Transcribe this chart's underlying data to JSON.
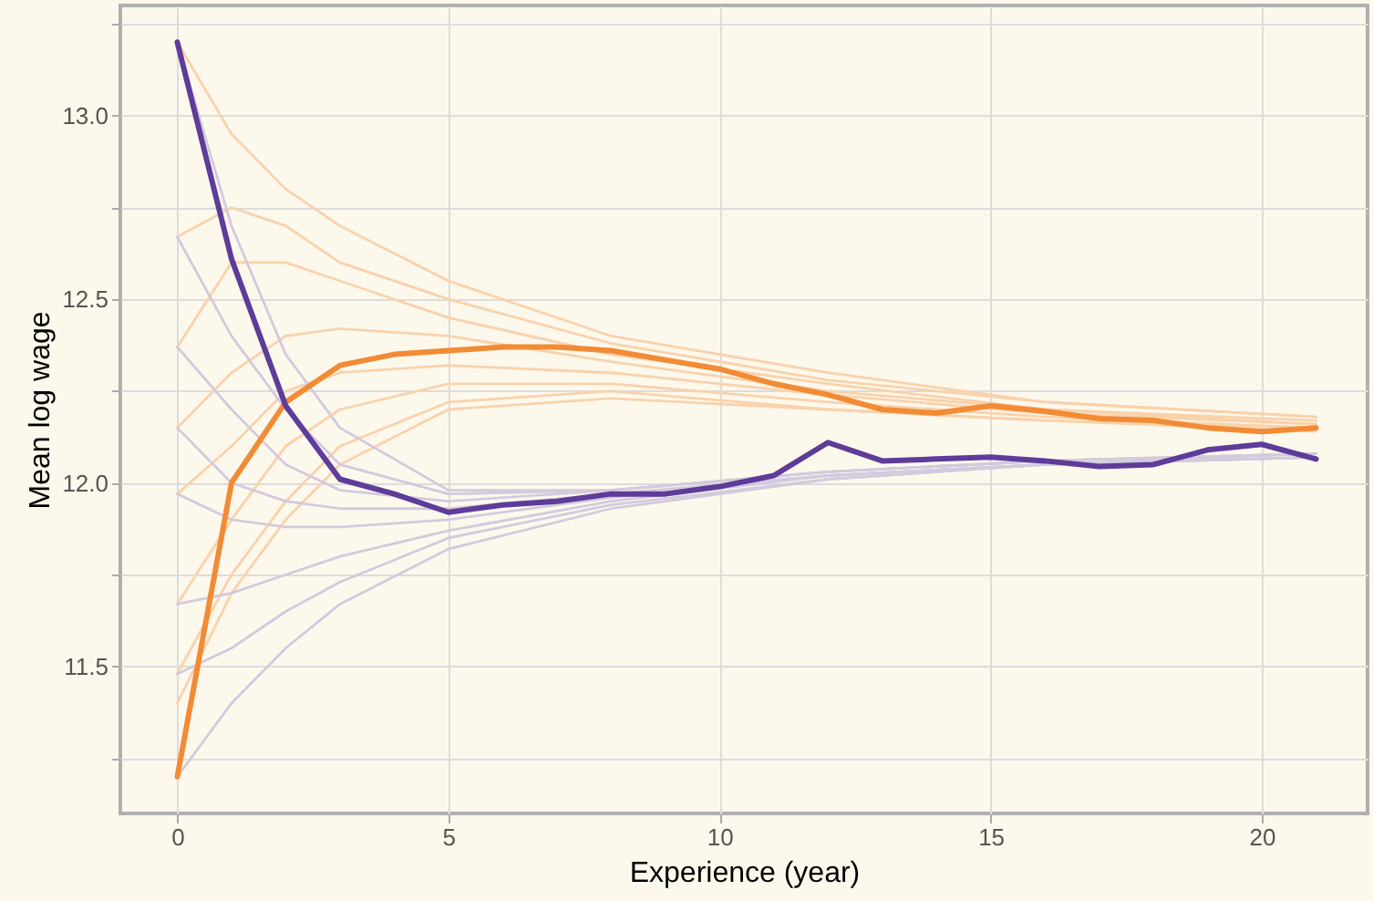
{
  "chart_data": {
    "type": "line",
    "xlabel": "Experience (year)",
    "ylabel": "Mean log wage",
    "x": [
      0,
      1,
      2,
      3,
      4,
      5,
      6,
      7,
      8,
      9,
      10,
      11,
      12,
      13,
      14,
      15,
      16,
      17,
      18,
      19,
      20,
      21
    ],
    "xlim": [
      -1.05,
      21.95
    ],
    "xticks": [
      0,
      5,
      10,
      15,
      20
    ],
    "ylim": [
      11.1,
      13.3
    ],
    "yticks": [
      {
        "value": 11.25,
        "label": null
      },
      {
        "value": 11.5,
        "label": "11.5"
      },
      {
        "value": 11.75,
        "label": null
      },
      {
        "value": 12,
        "label": "12.0"
      },
      {
        "value": 12.25,
        "label": null
      },
      {
        "value": 12.5,
        "label": "12.5"
      },
      {
        "value": 12.75,
        "label": null
      },
      {
        "value": 13,
        "label": "13.0"
      },
      {
        "value": 13.25,
        "label": null
      }
    ],
    "grid": true,
    "marker": "none",
    "line_style": "solid",
    "series": [
      {
        "color": "#f9d2ab",
        "x": [
          0,
          1,
          2,
          3,
          5,
          8,
          12,
          16,
          21
        ],
        "values": [
          13.2,
          12.95,
          12.8,
          12.7,
          12.55,
          12.4,
          12.3,
          12.22,
          12.18
        ]
      },
      {
        "color": "#f9d2ab",
        "x": [
          0,
          1,
          2,
          3,
          5,
          8,
          12,
          16,
          21
        ],
        "values": [
          12.67,
          12.75,
          12.7,
          12.6,
          12.5,
          12.38,
          12.28,
          12.22,
          12.18
        ]
      },
      {
        "color": "#f9d2ab",
        "x": [
          0,
          1,
          2,
          3,
          5,
          8,
          12,
          16,
          21
        ],
        "values": [
          12.37,
          12.6,
          12.6,
          12.55,
          12.45,
          12.35,
          12.27,
          12.2,
          12.17
        ]
      },
      {
        "color": "#f9d2ab",
        "x": [
          0,
          1,
          2,
          3,
          5,
          8,
          12,
          16,
          21
        ],
        "values": [
          12.15,
          12.3,
          12.4,
          12.42,
          12.4,
          12.33,
          12.25,
          12.2,
          12.16
        ]
      },
      {
        "color": "#f9d2ab",
        "x": [
          0,
          1,
          2,
          3,
          5,
          8,
          12,
          16,
          21
        ],
        "values": [
          11.97,
          12.1,
          12.25,
          12.3,
          12.32,
          12.3,
          12.24,
          12.19,
          12.16
        ]
      },
      {
        "color": "#f9d2ab",
        "x": [
          0,
          1,
          2,
          3,
          5,
          8,
          12,
          16,
          21
        ],
        "values": [
          11.67,
          11.9,
          12.1,
          12.2,
          12.27,
          12.27,
          12.22,
          12.18,
          12.15
        ]
      },
      {
        "color": "#f9d2ab",
        "x": [
          0,
          1,
          2,
          3,
          5,
          8,
          12,
          16,
          21
        ],
        "values": [
          11.48,
          11.75,
          11.95,
          12.1,
          12.22,
          12.25,
          12.2,
          12.17,
          12.15
        ]
      },
      {
        "color": "#f9d2ab",
        "x": [
          0,
          1,
          2,
          3,
          5,
          8,
          12,
          16,
          21
        ],
        "values": [
          11.4,
          11.7,
          11.9,
          12.05,
          12.2,
          12.23,
          12.2,
          12.17,
          12.14
        ]
      },
      {
        "color": "#d3cade",
        "x": [
          0,
          1,
          2,
          3,
          5,
          8,
          12,
          16,
          21
        ],
        "values": [
          13.2,
          12.7,
          12.35,
          12.15,
          11.98,
          11.98,
          12.03,
          12.06,
          12.08
        ]
      },
      {
        "color": "#d3cade",
        "x": [
          0,
          1,
          2,
          3,
          5,
          8,
          12,
          16,
          21
        ],
        "values": [
          12.67,
          12.4,
          12.2,
          12.05,
          11.97,
          11.98,
          12.03,
          12.06,
          12.08
        ]
      },
      {
        "color": "#d3cade",
        "x": [
          0,
          1,
          2,
          3,
          5,
          8,
          12,
          16,
          21
        ],
        "values": [
          12.37,
          12.2,
          12.05,
          11.98,
          11.95,
          11.98,
          12.03,
          12.06,
          12.08
        ]
      },
      {
        "color": "#d3cade",
        "x": [
          0,
          1,
          2,
          3,
          5,
          8,
          12,
          16,
          21
        ],
        "values": [
          12.15,
          12.0,
          11.95,
          11.93,
          11.93,
          11.97,
          12.02,
          12.05,
          12.08
        ]
      },
      {
        "color": "#d3cade",
        "x": [
          0,
          1,
          2,
          3,
          5,
          8,
          12,
          16,
          21
        ],
        "values": [
          11.97,
          11.9,
          11.88,
          11.88,
          11.9,
          11.96,
          12.02,
          12.05,
          12.07
        ]
      },
      {
        "color": "#d3cade",
        "x": [
          0,
          1,
          2,
          3,
          5,
          8,
          12,
          16,
          21
        ],
        "values": [
          11.67,
          11.7,
          11.75,
          11.8,
          11.87,
          11.95,
          12.02,
          12.05,
          12.07
        ]
      },
      {
        "color": "#d3cade",
        "x": [
          0,
          1,
          2,
          3,
          5,
          8,
          12,
          16,
          21
        ],
        "values": [
          11.48,
          11.55,
          11.65,
          11.73,
          11.85,
          11.94,
          12.01,
          12.05,
          12.07
        ]
      },
      {
        "color": "#d3cade",
        "x": [
          0,
          1,
          2,
          3,
          5,
          8,
          12,
          16,
          21
        ],
        "values": [
          11.2,
          11.4,
          11.55,
          11.67,
          11.82,
          11.93,
          12.01,
          12.05,
          12.07
        ]
      },
      {
        "color": "#f28b35",
        "values": [
          11.2,
          12.0,
          12.22,
          12.32,
          12.35,
          12.36,
          12.37,
          12.37,
          12.36,
          12.335,
          12.31,
          12.27,
          12.24,
          12.2,
          12.19,
          12.21,
          12.195,
          12.175,
          12.17,
          12.15,
          12.14,
          12.15
        ]
      },
      {
        "color": "#5e3c99",
        "values": [
          13.2,
          12.61,
          12.21,
          12.01,
          11.97,
          11.92,
          11.94,
          11.95,
          11.97,
          11.97,
          11.99,
          12.02,
          12.11,
          12.06,
          12.065,
          12.07,
          12.06,
          12.045,
          12.05,
          12.09,
          12.105,
          12.065
        ]
      }
    ]
  }
}
